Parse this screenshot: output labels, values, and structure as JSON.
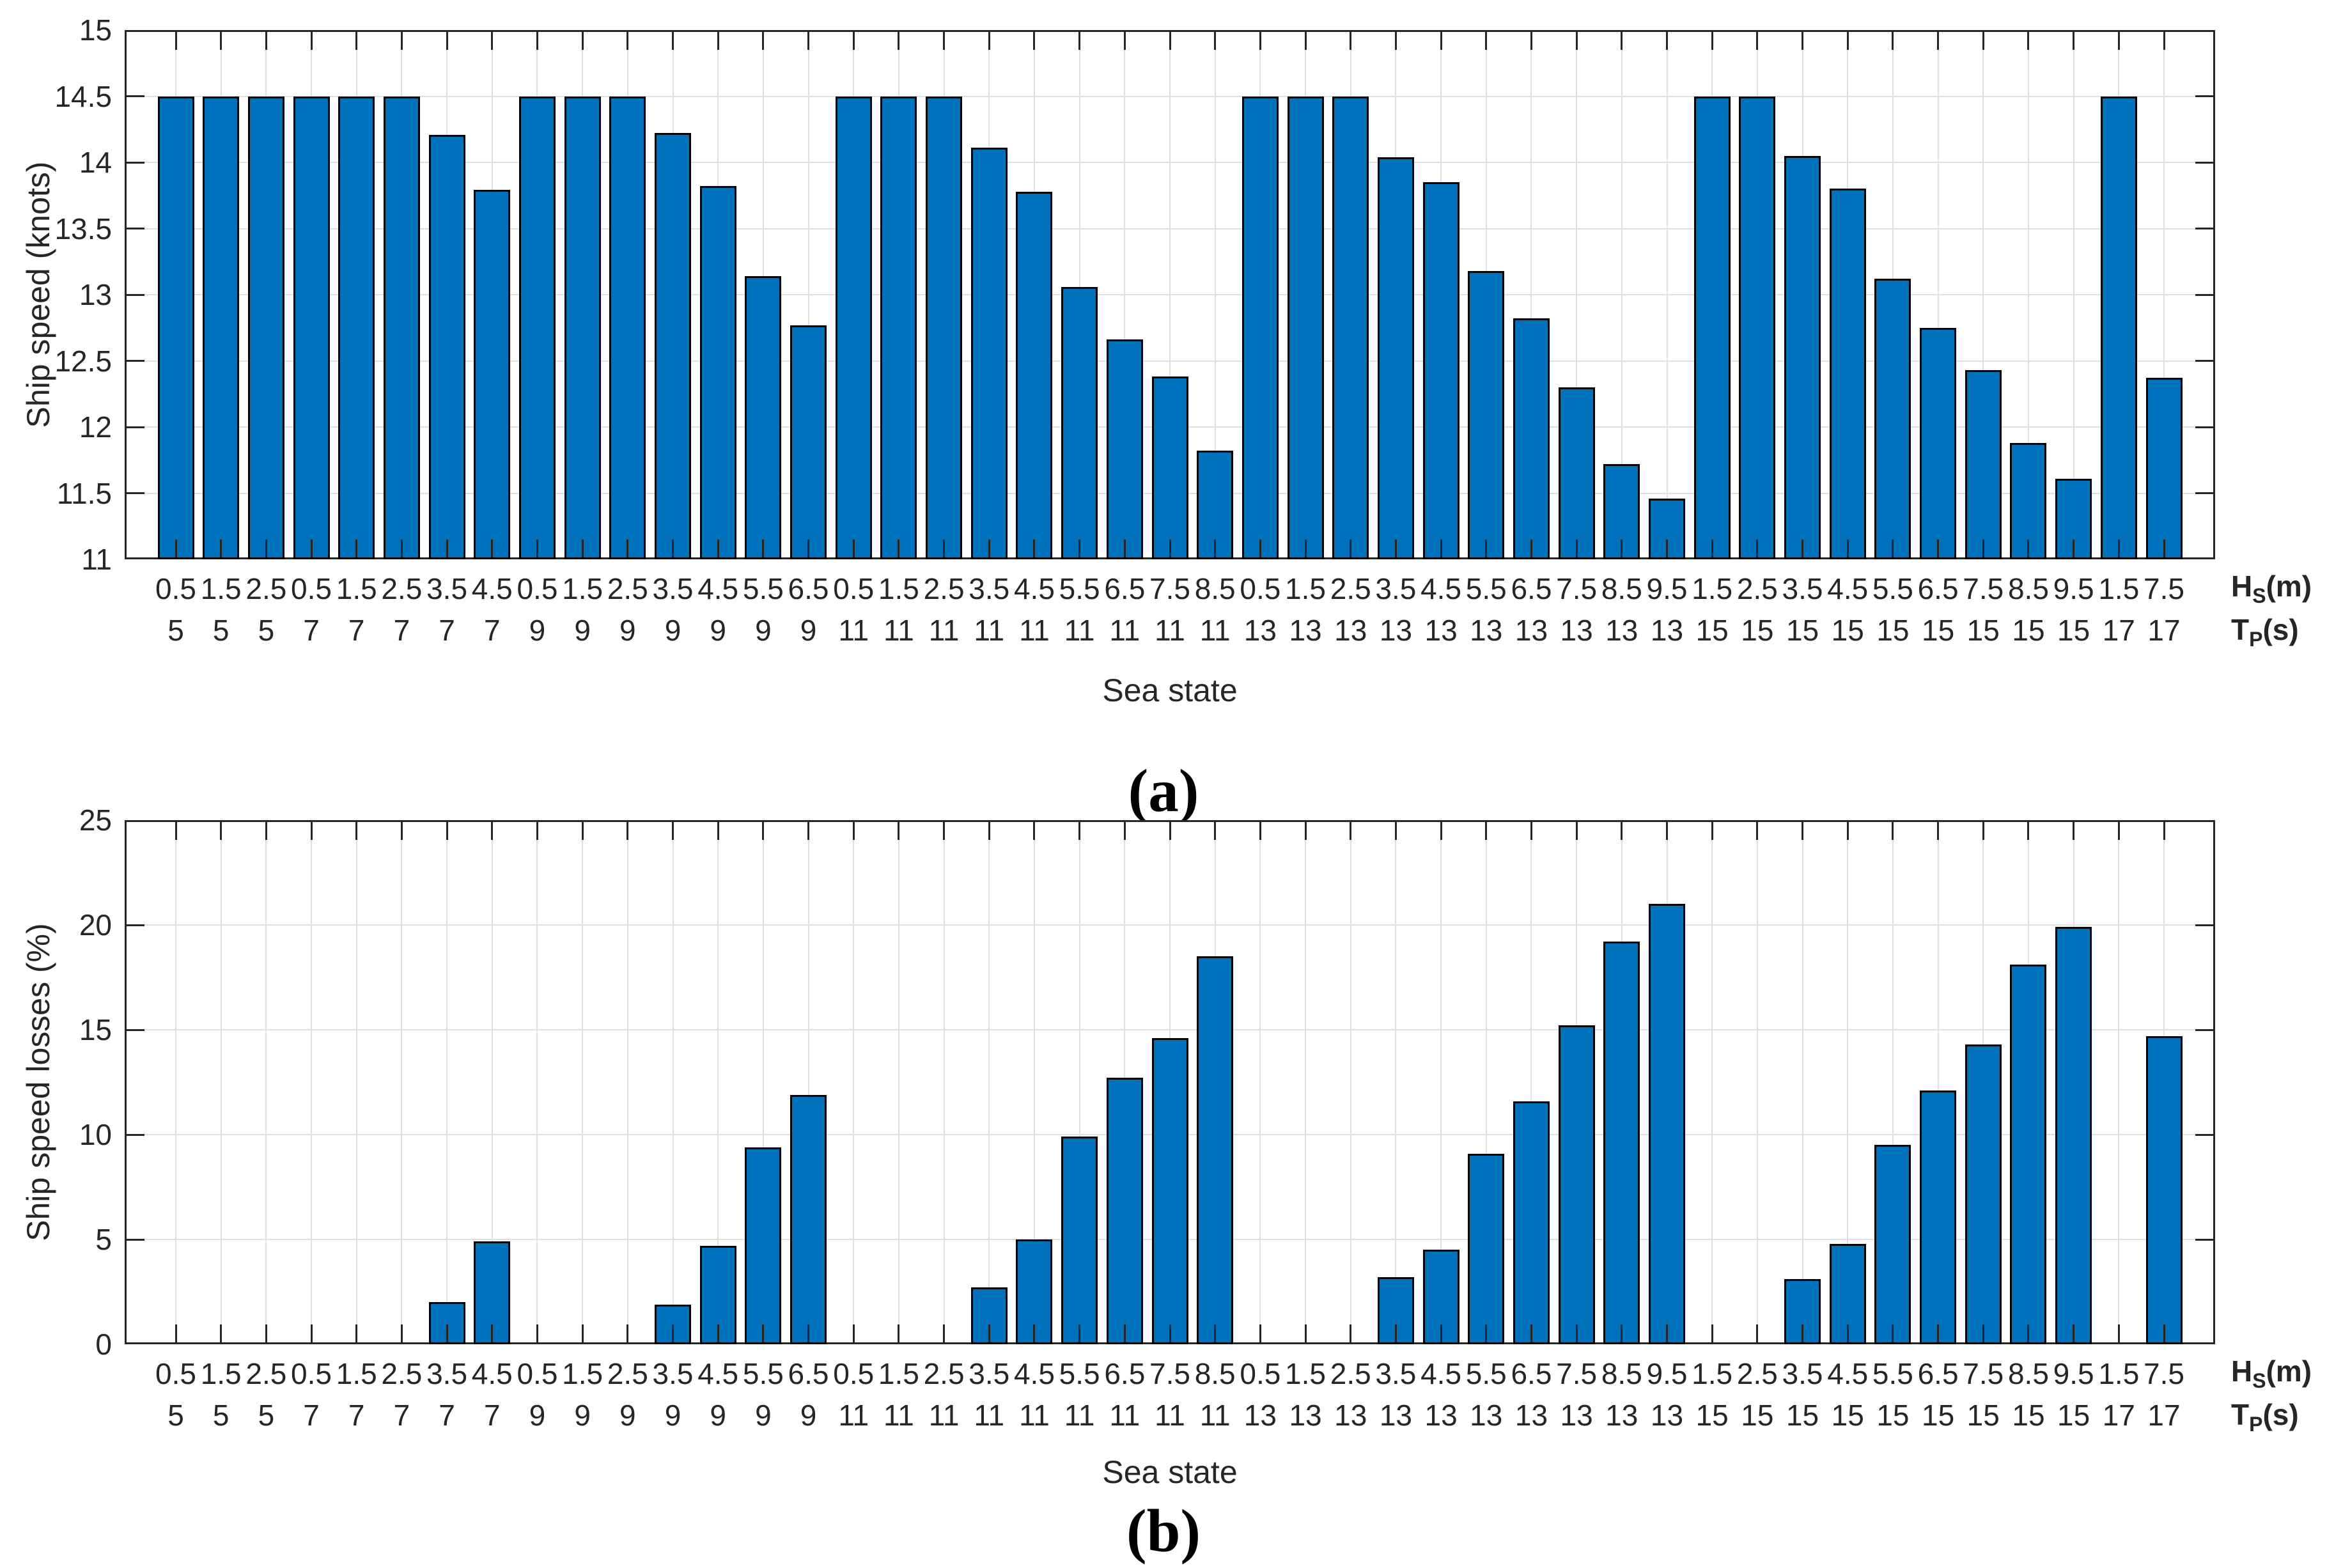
{
  "figure": {
    "background": "#ffffff",
    "bar_color": "#0072BD",
    "bar_edge_color": "#000000",
    "grid_color": "#e0e0e0",
    "axis_color": "#262626"
  },
  "panels": [
    {
      "label": "(a)"
    },
    {
      "label": "(b)"
    }
  ],
  "axis_annotations": {
    "hs_base": "H",
    "hs_sub": "S",
    "hs_unit": "(m)",
    "tp_base": "T",
    "tp_sub": "P",
    "tp_unit": "(s)"
  },
  "chart_data": [
    {
      "type": "bar",
      "panel": "a",
      "title": "",
      "xlabel": "Sea state",
      "ylabel": "Ship speed (knots)",
      "ylim": [
        11,
        15
      ],
      "yticks": [
        "11",
        "11.5",
        "12",
        "12.5",
        "13",
        "13.5",
        "14",
        "14.5",
        "15"
      ],
      "grid": true,
      "legend": null,
      "bar_color": "#0072BD",
      "categories_hs": [
        "0.5",
        "1.5",
        "2.5",
        "0.5",
        "1.5",
        "2.5",
        "3.5",
        "4.5",
        "0.5",
        "1.5",
        "2.5",
        "3.5",
        "4.5",
        "5.5",
        "6.5",
        "0.5",
        "1.5",
        "2.5",
        "3.5",
        "4.5",
        "5.5",
        "6.5",
        "7.5",
        "8.5",
        "0.5",
        "1.5",
        "2.5",
        "3.5",
        "4.5",
        "5.5",
        "6.5",
        "7.5",
        "8.5",
        "9.5",
        "1.5",
        "2.5",
        "3.5",
        "4.5",
        "5.5",
        "6.5",
        "7.5",
        "8.5",
        "9.5",
        "1.5",
        "7.5"
      ],
      "categories_tp": [
        "5",
        "5",
        "5",
        "7",
        "7",
        "7",
        "7",
        "7",
        "9",
        "9",
        "9",
        "9",
        "9",
        "9",
        "9",
        "11",
        "11",
        "11",
        "11",
        "11",
        "11",
        "11",
        "11",
        "11",
        "13",
        "13",
        "13",
        "13",
        "13",
        "13",
        "13",
        "13",
        "13",
        "13",
        "15",
        "15",
        "15",
        "15",
        "15",
        "15",
        "15",
        "15",
        "15",
        "17",
        "17"
      ],
      "values": [
        14.5,
        14.5,
        14.5,
        14.5,
        14.5,
        14.5,
        14.21,
        13.79,
        14.5,
        14.5,
        14.5,
        14.22,
        13.82,
        13.14,
        12.77,
        14.5,
        14.5,
        14.5,
        14.11,
        13.78,
        13.06,
        12.66,
        12.38,
        11.82,
        14.5,
        14.5,
        14.5,
        14.04,
        13.85,
        13.18,
        12.82,
        12.3,
        11.72,
        11.46,
        14.5,
        14.5,
        14.05,
        13.8,
        13.12,
        12.75,
        12.43,
        11.88,
        11.61,
        14.5,
        12.37
      ]
    },
    {
      "type": "bar",
      "panel": "b",
      "title": "",
      "xlabel": "Sea state",
      "ylabel": "Ship speed losses (%)",
      "ylim": [
        0,
        25
      ],
      "yticks": [
        "0",
        "5",
        "10",
        "15",
        "20",
        "25"
      ],
      "grid": true,
      "legend": null,
      "bar_color": "#0072BD",
      "categories_hs": [
        "0.5",
        "1.5",
        "2.5",
        "0.5",
        "1.5",
        "2.5",
        "3.5",
        "4.5",
        "0.5",
        "1.5",
        "2.5",
        "3.5",
        "4.5",
        "5.5",
        "6.5",
        "0.5",
        "1.5",
        "2.5",
        "3.5",
        "4.5",
        "5.5",
        "6.5",
        "7.5",
        "8.5",
        "0.5",
        "1.5",
        "2.5",
        "3.5",
        "4.5",
        "5.5",
        "6.5",
        "7.5",
        "8.5",
        "9.5",
        "1.5",
        "2.5",
        "3.5",
        "4.5",
        "5.5",
        "6.5",
        "7.5",
        "8.5",
        "9.5",
        "1.5",
        "7.5"
      ],
      "categories_tp": [
        "5",
        "5",
        "5",
        "7",
        "7",
        "7",
        "7",
        "7",
        "9",
        "9",
        "9",
        "9",
        "9",
        "9",
        "9",
        "11",
        "11",
        "11",
        "11",
        "11",
        "11",
        "11",
        "11",
        "11",
        "13",
        "13",
        "13",
        "13",
        "13",
        "13",
        "13",
        "13",
        "13",
        "13",
        "15",
        "15",
        "15",
        "15",
        "15",
        "15",
        "15",
        "15",
        "15",
        "17",
        "17"
      ],
      "values": [
        0,
        0,
        0,
        0,
        0,
        0,
        2.0,
        4.9,
        0,
        0,
        0,
        1.9,
        4.7,
        9.4,
        11.9,
        0,
        0,
        0,
        2.7,
        5.0,
        9.9,
        12.7,
        14.6,
        18.5,
        0,
        0,
        0,
        3.2,
        4.5,
        9.1,
        11.6,
        15.2,
        19.2,
        21.0,
        0,
        0,
        3.1,
        4.8,
        9.5,
        12.1,
        14.3,
        18.1,
        19.9,
        0,
        14.7
      ]
    }
  ]
}
